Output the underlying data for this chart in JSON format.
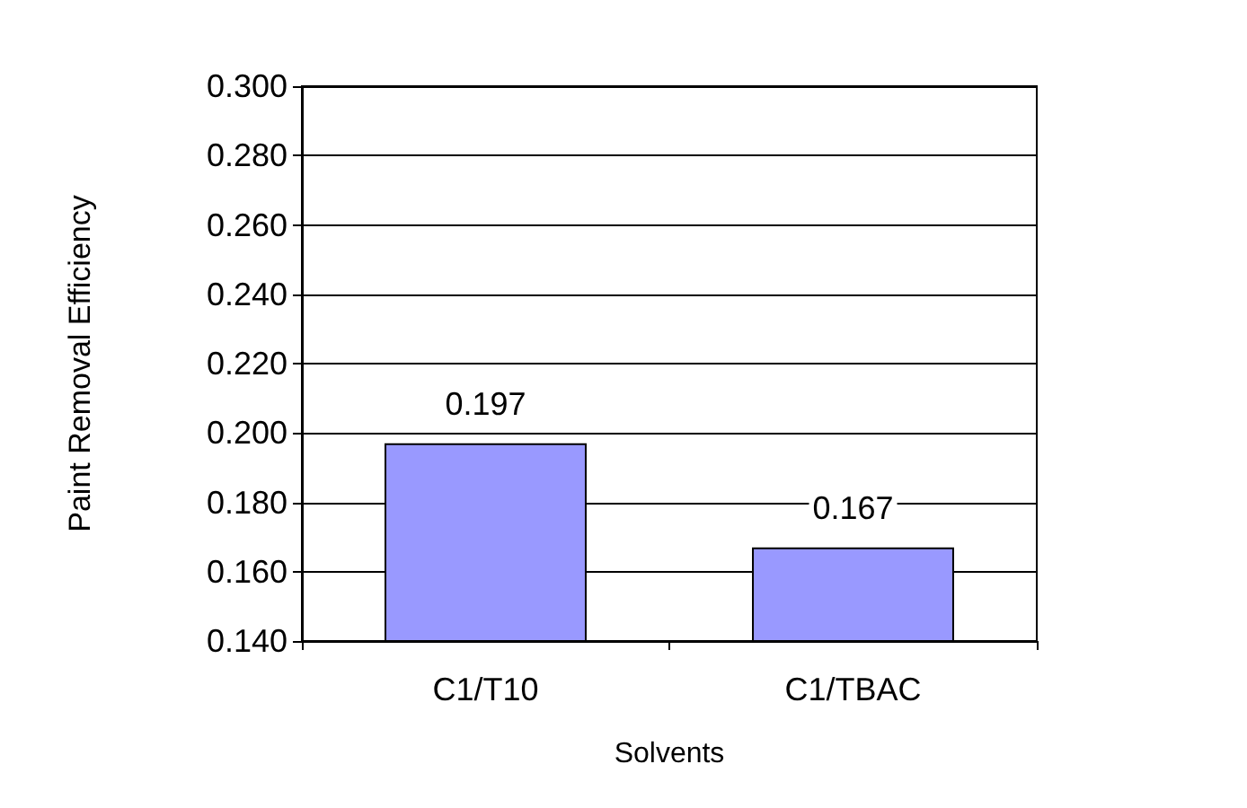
{
  "chart_data": {
    "type": "bar",
    "xlabel": "Solvents",
    "ylabel": "Paint Removal Efficiency",
    "categories": [
      "C1/T10",
      "C1/TBAC"
    ],
    "values": [
      0.197,
      0.167
    ],
    "color": "#9999ff",
    "ylim": [
      0.14,
      0.3
    ],
    "yticks": [
      {
        "value": 0.14,
        "label": "0.140"
      },
      {
        "value": 0.16,
        "label": "0.160"
      },
      {
        "value": 0.18,
        "label": "0.180"
      },
      {
        "value": 0.2,
        "label": "0.200"
      },
      {
        "value": 0.22,
        "label": "0.220"
      },
      {
        "value": 0.24,
        "label": "0.240"
      },
      {
        "value": 0.26,
        "label": "0.260"
      },
      {
        "value": 0.28,
        "label": "0.280"
      },
      {
        "value": 0.3,
        "label": "0.300"
      }
    ],
    "grid": "y",
    "data_labels": true
  }
}
